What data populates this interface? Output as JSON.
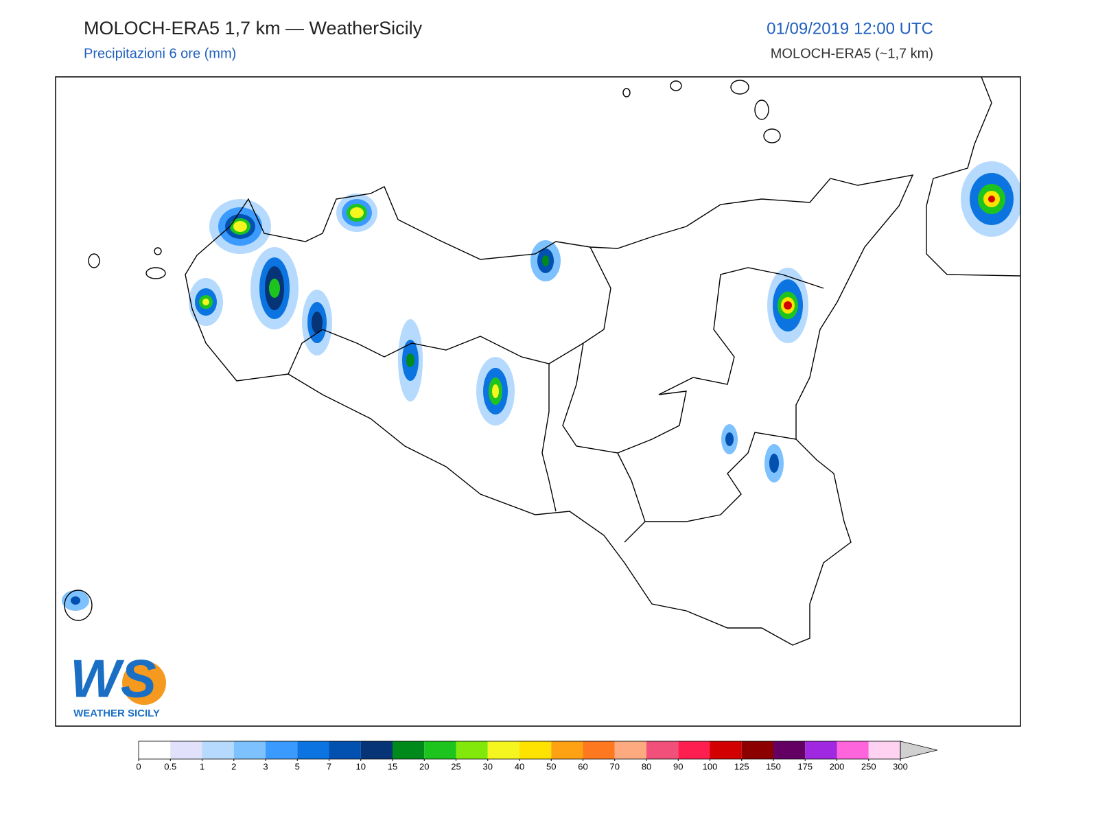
{
  "header": {
    "title": "MOLOCH-ERA5 1,7 km — WeatherSicily",
    "subtitle": "Precipitazioni 6 ore (mm)",
    "datetime": "01/09/2019 12:00 UTC",
    "model": "MOLOCH-ERA5 (~1,7 km)"
  },
  "logo": {
    "mark": "WS",
    "name": "WEATHER SICILY"
  },
  "colorbar": {
    "bounds": [
      0,
      0.5,
      1,
      2,
      3,
      5,
      7,
      10,
      15,
      20,
      25,
      30,
      40,
      50,
      60,
      70,
      80,
      90,
      100,
      125,
      150,
      175,
      200,
      250,
      300
    ],
    "colors": [
      "#ffffff",
      "#e1e1fc",
      "#b5dafe",
      "#7dc1fe",
      "#3b9afe",
      "#0c74e0",
      "#0250b0",
      "#063476",
      "#008a1c",
      "#1ec41e",
      "#82e80c",
      "#f5f520",
      "#fee200",
      "#fea214",
      "#fe7820",
      "#fdaa80",
      "#f0507a",
      "#fe1e50",
      "#d20000",
      "#8c0000",
      "#640064",
      "#a028e0",
      "#fe64dc",
      "#fed2f0"
    ],
    "over_color": "#d0d0d0"
  }
}
